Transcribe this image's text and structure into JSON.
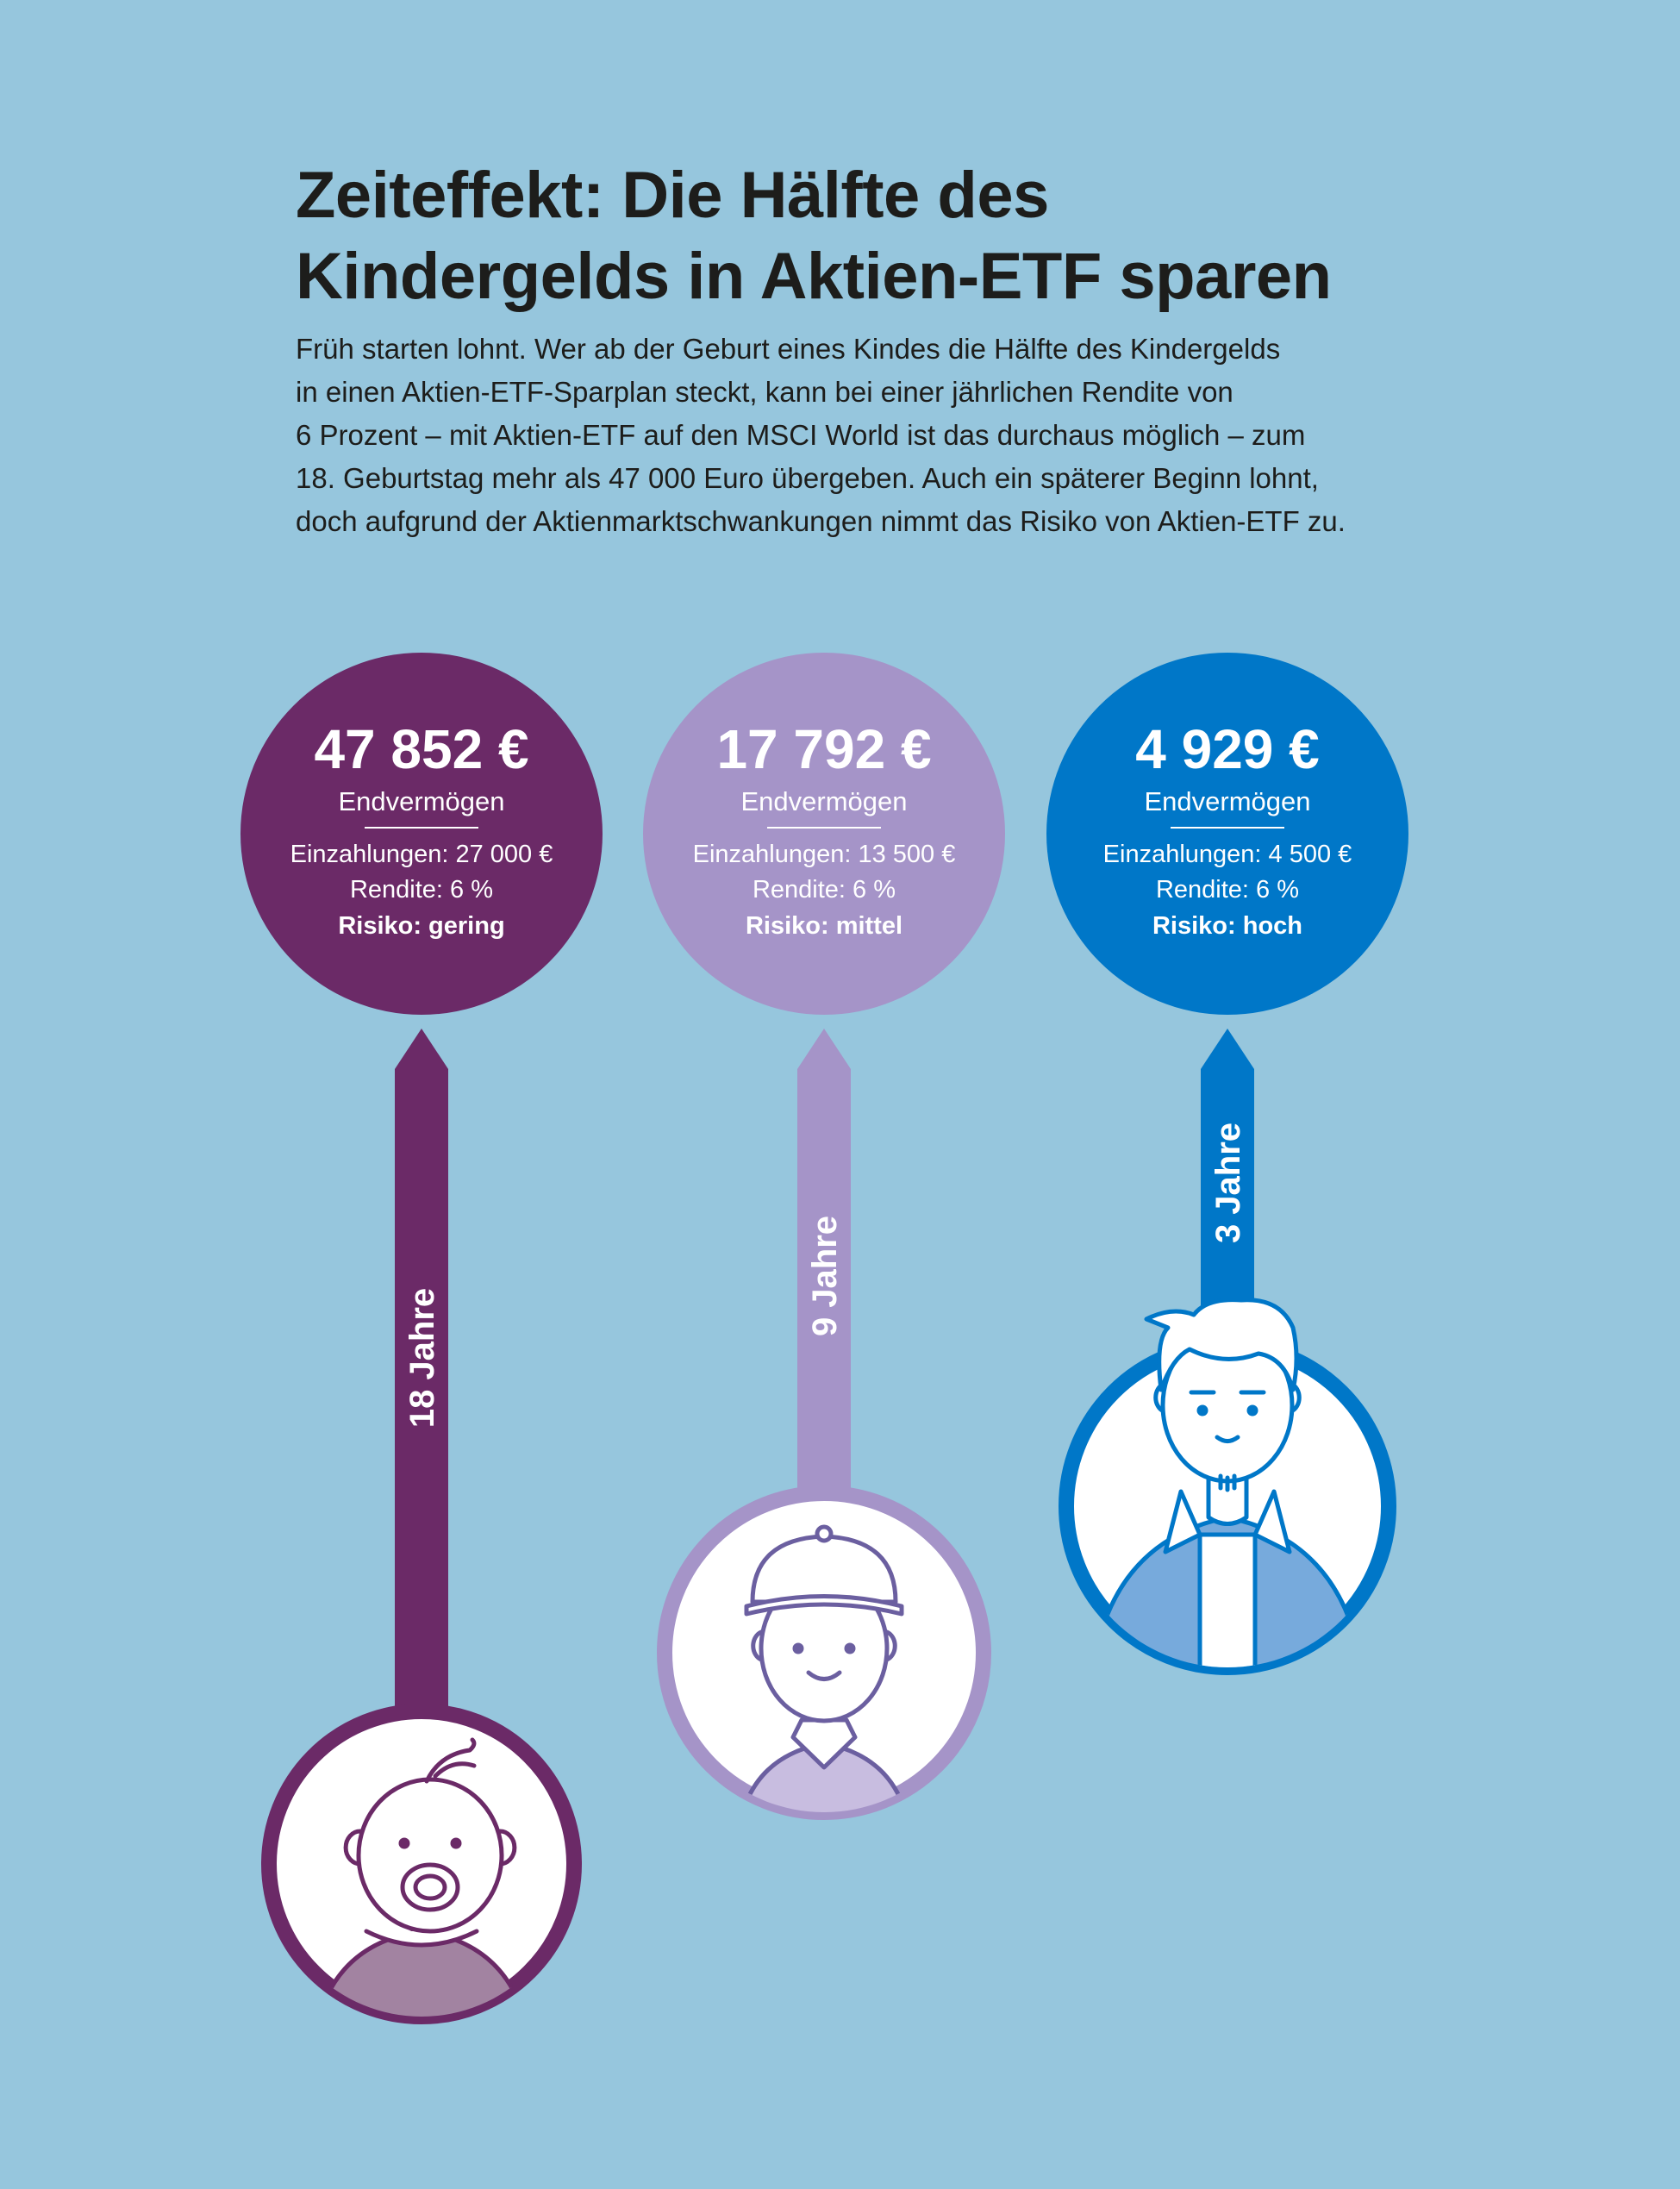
{
  "title": {
    "line1": "Zeiteffekt: Die Hälfte des",
    "line2": "Kindergelds in Aktien-ETF sparen"
  },
  "intro": {
    "lines": [
      "Früh starten lohnt. Wer ab der Geburt eines Kindes die Hälfte des Kindergelds",
      "in einen Aktien-ETF-Sparplan steckt, kann bei einer jährlichen Rendite von",
      "6 Prozent – mit Aktien-ETF auf den MSCI World ist das durchaus möglich – zum",
      "18. Geburtstag mehr als 47 000 Euro übergeben. Auch ein späterer Beginn lohnt,",
      "doch aufgrund der Aktienmarktschwankungen nimmt das Risiko von Aktien-ETF zu."
    ]
  },
  "scenarios": [
    {
      "amount": "47 852 €",
      "label": "Endvermögen",
      "deposits": "Einzahlungen: 27 000 €",
      "return": "Rendite: 6 %",
      "risk": "Risiko: gering",
      "duration": "18 Jahre",
      "color": "#6b2a67",
      "person_icon": "baby-icon"
    },
    {
      "amount": "17 792 €",
      "label": "Endvermögen",
      "deposits": "Einzahlungen: 13 500 €",
      "return": "Rendite: 6 %",
      "risk": "Risiko: mittel",
      "duration": "9 Jahre",
      "color": "#a594c8",
      "person_icon": "child-icon"
    },
    {
      "amount": "4 929 €",
      "label": "Endvermögen",
      "deposits": "Einzahlungen: 4 500 €",
      "return": "Rendite: 6 %",
      "risk": "Risiko: hoch",
      "duration": "3 Jahre",
      "color": "#0077c8",
      "person_icon": "teenager-icon"
    }
  ]
}
